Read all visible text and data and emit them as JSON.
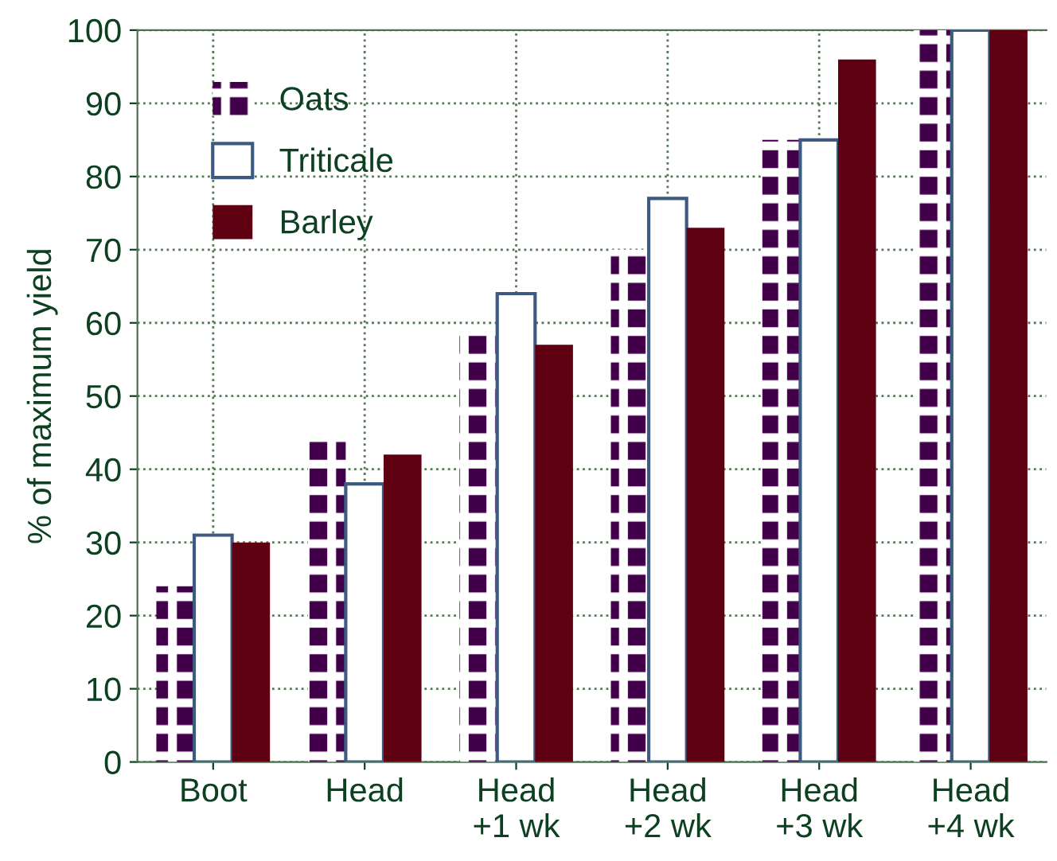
{
  "chart_data": {
    "type": "bar",
    "ylabel": "% of maximum yield",
    "categories": [
      "Boot",
      "Head",
      "Head\n+1 wk",
      "Head\n+2 wk",
      "Head\n+3 wk",
      "Head\n+4 wk"
    ],
    "series": [
      {
        "name": "Oats",
        "color": "#42004a",
        "values": [
          24,
          44,
          59,
          70,
          85,
          100
        ]
      },
      {
        "name": "Triticale",
        "color": "#ffffff",
        "values": [
          31,
          38,
          64,
          77,
          85,
          100
        ]
      },
      {
        "name": "Barley",
        "color": "#5e0012",
        "values": [
          30,
          42,
          57,
          73,
          96,
          100
        ]
      }
    ],
    "ylim": [
      0,
      100
    ],
    "yticks": [
      0,
      10,
      20,
      30,
      40,
      50,
      60,
      70,
      80,
      90,
      100
    ],
    "grid": true,
    "legend": "top left"
  }
}
